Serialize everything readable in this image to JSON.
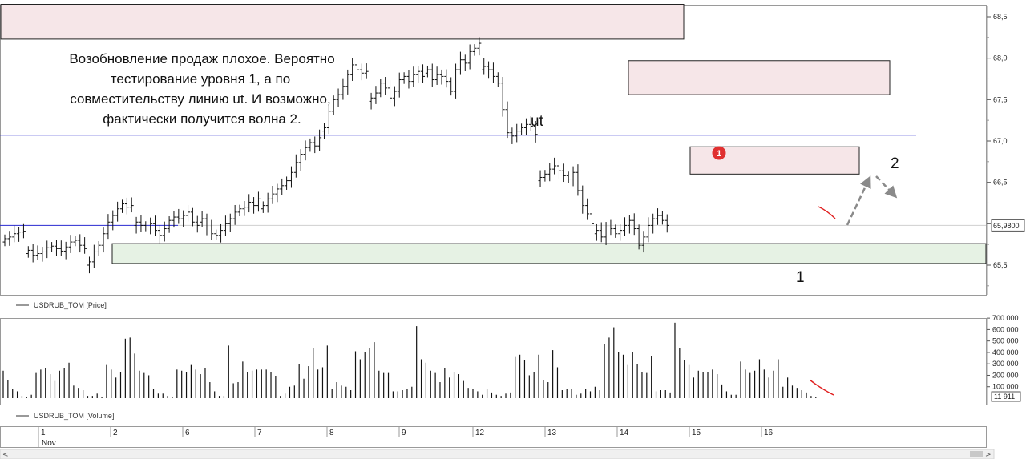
{
  "chart_data": [
    {
      "type": "ohlc",
      "symbol": "USDRUB_TOM",
      "legend": "USDRUB_TOM [Price]",
      "ylim": [
        65.3,
        68.7
      ],
      "yticks": [
        "68,5",
        "68,0",
        "67,5",
        "67,0",
        "66,5",
        "66,0",
        "65,5"
      ],
      "ytick_values": [
        68.5,
        68.0,
        67.5,
        67.0,
        66.5,
        66.0,
        65.5
      ],
      "last_price_label": "65,9800",
      "last_price": 65.98,
      "sessions": [
        {
          "day": "1",
          "closes": [
            65.82,
            65.84,
            65.88,
            65.9,
            65.91
          ]
        },
        {
          "day": "",
          "closes": [
            65.68,
            65.62,
            65.64,
            65.66,
            65.71,
            65.73,
            65.7,
            65.67,
            65.72,
            65.78,
            65.8,
            65.74,
            65.7
          ]
        },
        {
          "day": "2",
          "closes": [
            65.54,
            65.66,
            65.74,
            65.88,
            66.02,
            66.1,
            66.18,
            66.24,
            66.2,
            66.22
          ]
        },
        {
          "day": "6",
          "closes": [
            66.02,
            65.98,
            65.96,
            66.0,
            65.92,
            65.86,
            65.94,
            66.04
          ]
        },
        {
          "day": "",
          "closes": [
            66.08,
            66.06,
            66.1,
            66.14,
            66.02,
            65.98
          ]
        },
        {
          "day": "7",
          "closes": [
            66.06,
            65.96,
            65.88,
            65.86,
            65.92,
            66.0,
            66.06,
            66.14,
            66.18,
            66.2,
            66.26,
            66.22,
            66.3
          ]
        },
        {
          "day": "8",
          "closes": [
            66.22,
            66.3,
            66.36,
            66.42,
            66.46,
            66.52,
            66.62,
            66.74,
            66.84,
            66.92,
            66.98,
            66.94,
            67.04
          ]
        },
        {
          "day": "9",
          "closes": [
            67.16,
            67.36,
            67.5,
            67.56,
            67.66,
            67.8,
            67.92,
            67.86,
            67.82,
            67.84
          ]
        },
        {
          "day": "12",
          "closes": [
            67.52,
            67.58,
            67.7,
            67.64,
            67.52,
            67.6,
            67.74,
            67.78,
            67.72,
            67.8,
            67.84,
            67.78
          ]
        },
        {
          "day": "13",
          "closes": [
            67.86,
            67.74,
            67.8,
            67.78,
            67.72,
            67.6,
            67.86,
            67.98,
            67.94,
            68.08,
            68.12,
            68.18
          ]
        },
        {
          "day": "14",
          "closes": [
            67.9,
            67.86,
            67.78,
            67.7,
            67.38,
            67.1,
            67.06,
            67.12,
            67.16,
            67.2,
            67.18,
            67.08
          ]
        },
        {
          "day": "15",
          "closes": [
            66.56,
            66.6,
            66.66,
            66.7,
            66.64,
            66.58,
            66.54,
            66.62,
            66.4,
            66.22,
            66.12,
            66.0
          ]
        },
        {
          "day": "16",
          "closes": [
            65.92,
            65.84,
            65.96,
            65.94,
            65.88,
            65.92,
            65.98,
            66.04,
            65.94,
            65.74,
            65.84,
            65.98,
            66.06,
            66.1,
            66.04,
            65.98
          ]
        }
      ],
      "horizontal_levels": [
        {
          "price": 67.07,
          "color": "#2a2ad0"
        },
        {
          "price": 65.98,
          "color": "#2a2ad0",
          "segment": "left"
        },
        {
          "price": 65.98,
          "color": "#cfcfcf"
        }
      ],
      "zones": [
        {
          "from": 68.23,
          "to": 68.65,
          "fill": "#f6e6e8"
        },
        {
          "from": 67.56,
          "to": 67.97,
          "fill": "#f6e6e8"
        },
        {
          "from": 66.6,
          "to": 66.93,
          "fill": "#f6e6e8"
        },
        {
          "from": 65.52,
          "to": 65.76,
          "fill": "#e6f2e4"
        }
      ],
      "annotation_lines": [
        "Возобновление продаж плохое. Вероятно",
        "тестирование уровня 1, а по",
        "совместительству линию ut. И возможно,",
        "фактически получится волна 2."
      ],
      "labels": {
        "ut": "ut",
        "wave1": "1",
        "wave2": "2",
        "marker": "1"
      },
      "colors": {
        "bar": "#111111",
        "level": "#2a2ad0",
        "marker": "#e03030",
        "arrow": "#8a8a8a",
        "trend": "#e02020"
      }
    },
    {
      "type": "bar",
      "symbol": "USDRUB_TOM",
      "legend": "USDRUB_TOM [Volume]",
      "ylim": [
        0,
        750000
      ],
      "yticks": [
        "700 000",
        "600 000",
        "500 000",
        "400 000",
        "300 000",
        "200 000",
        "100 000"
      ],
      "ytick_values": [
        700000,
        600000,
        500000,
        400000,
        300000,
        200000,
        100000
      ],
      "last_volume_label": "11 911",
      "last_volume": 11911,
      "values": [
        240000,
        160000,
        80000,
        60000,
        20000,
        10000,
        30000,
        220000,
        250000,
        260000,
        210000,
        150000,
        240000,
        260000,
        310000,
        110000,
        90000,
        70000,
        20000,
        20000,
        40000,
        10000,
        290000,
        250000,
        180000,
        230000,
        520000,
        530000,
        390000,
        240000,
        220000,
        200000,
        80000,
        40000,
        40000,
        20000,
        10000,
        250000,
        240000,
        230000,
        290000,
        250000,
        210000,
        260000,
        140000,
        60000,
        20000,
        20000,
        460000,
        130000,
        140000,
        320000,
        230000,
        240000,
        250000,
        250000,
        250000,
        230000,
        190000,
        20000,
        40000,
        100000,
        110000,
        300000,
        170000,
        280000,
        440000,
        250000,
        270000,
        460000,
        80000,
        140000,
        110000,
        100000,
        70000,
        410000,
        340000,
        400000,
        440000,
        490000,
        240000,
        220000,
        220000,
        60000,
        60000,
        70000,
        80000,
        100000,
        630000,
        340000,
        310000,
        240000,
        220000,
        140000,
        260000,
        180000,
        230000,
        210000,
        150000,
        90000,
        80000,
        60000,
        30000,
        80000,
        50000,
        30000,
        20000,
        40000,
        50000,
        360000,
        380000,
        330000,
        200000,
        230000,
        380000,
        160000,
        140000,
        420000,
        270000,
        70000,
        80000,
        80000,
        30000,
        40000,
        80000,
        60000,
        100000,
        70000,
        470000,
        530000,
        620000,
        400000,
        380000,
        290000,
        400000,
        300000,
        230000,
        220000,
        370000,
        60000,
        70000,
        70000,
        50000,
        660000,
        440000,
        330000,
        290000,
        180000,
        240000,
        230000,
        230000,
        250000,
        210000,
        120000,
        60000,
        30000,
        30000,
        320000,
        250000,
        220000,
        240000,
        340000,
        250000,
        180000,
        240000,
        340000,
        100000,
        180000,
        110000,
        90000,
        70000,
        50000,
        20000,
        11911
      ],
      "colors": {
        "bar": "#111111",
        "trend": "#e02020"
      }
    }
  ],
  "time_axis": {
    "days": [
      "1",
      "2",
      "6",
      "7",
      "8",
      "9",
      "12",
      "13",
      "14",
      "15",
      "16"
    ],
    "month": "Nov"
  }
}
